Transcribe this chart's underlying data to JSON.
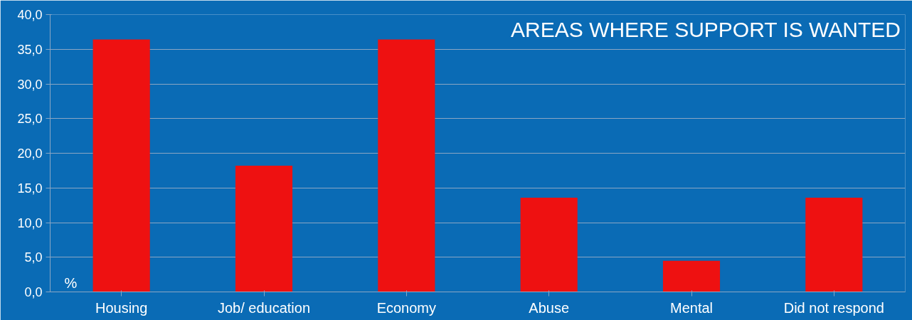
{
  "chart_data": {
    "type": "bar",
    "title": "AREAS WHERE SUPPORT IS WANTED",
    "ylabel": "%",
    "categories": [
      "Housing",
      "Job/ education",
      "Economy",
      "Abuse",
      "Mental",
      "Did not respond"
    ],
    "values": [
      36.4,
      18.2,
      36.4,
      13.6,
      4.5,
      13.6
    ],
    "color": "#ee1111",
    "ylim": [
      0,
      40
    ],
    "yticks": [
      {
        "value": 0,
        "label": "0,0"
      },
      {
        "value": 5,
        "label": "5,0"
      },
      {
        "value": 10,
        "label": "10,0"
      },
      {
        "value": 15,
        "label": "15,0"
      },
      {
        "value": 20,
        "label": "20,0"
      },
      {
        "value": 25,
        "label": "25,0"
      },
      {
        "value": 30,
        "label": "30,0"
      },
      {
        "value": 35,
        "label": "35,0"
      },
      {
        "value": 40,
        "label": "40,0"
      }
    ],
    "grid": "y"
  }
}
